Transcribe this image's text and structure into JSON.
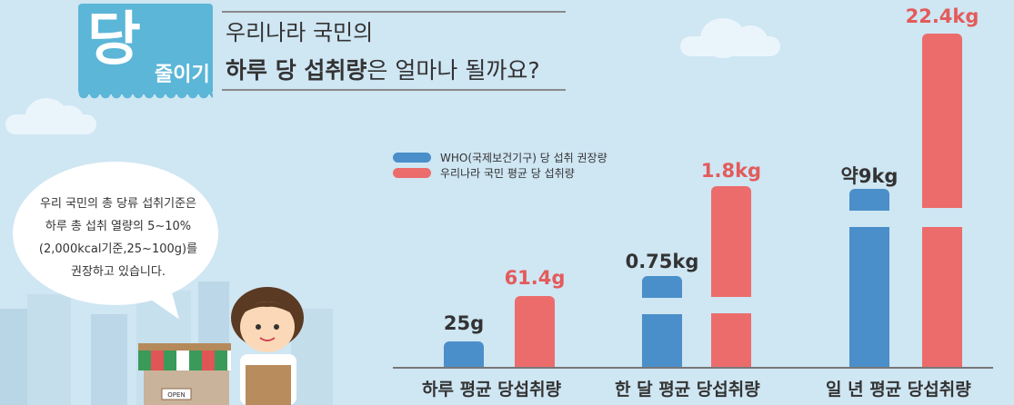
{
  "header": {
    "badge_big": "당",
    "badge_small": "줄이기",
    "line1": "우리나라 국민의",
    "line2_bold": "하루 당 섭취량",
    "line2_rest": "은 얼마나 될까요?"
  },
  "bubble": {
    "lines": [
      "우리 국민의 총 당류 섭취기준은",
      "하루 총 섭취 열량의 5~10%",
      "(2,000kcal기준,25~100g)를",
      "권장하고 있습니다."
    ]
  },
  "shop": {
    "sign": "OPEN"
  },
  "colors": {
    "who": "#4a8fc9",
    "korea": "#ec6c6c",
    "bg": "#cfe6f3"
  },
  "chart_data": {
    "type": "bar",
    "categories": [
      "하루 평균 당섭취량",
      "한 달 평균 당섭취량",
      "일 년 평균 당섭취량"
    ],
    "series": [
      {
        "name": "WHO(국제보건기구) 당 섭취 권장량",
        "values": [
          25,
          750,
          9000
        ],
        "labels": [
          "25g",
          "0.75kg",
          "약9kg"
        ]
      },
      {
        "name": "우리나라 국민 평균 당 섭취량",
        "values": [
          61.4,
          1800,
          22400
        ],
        "labels": [
          "61.4g",
          "1.8kg",
          "22.4kg"
        ]
      }
    ],
    "units": [
      "g",
      "kg",
      "kg"
    ],
    "axis_break": true,
    "legend_position": "top-left"
  }
}
